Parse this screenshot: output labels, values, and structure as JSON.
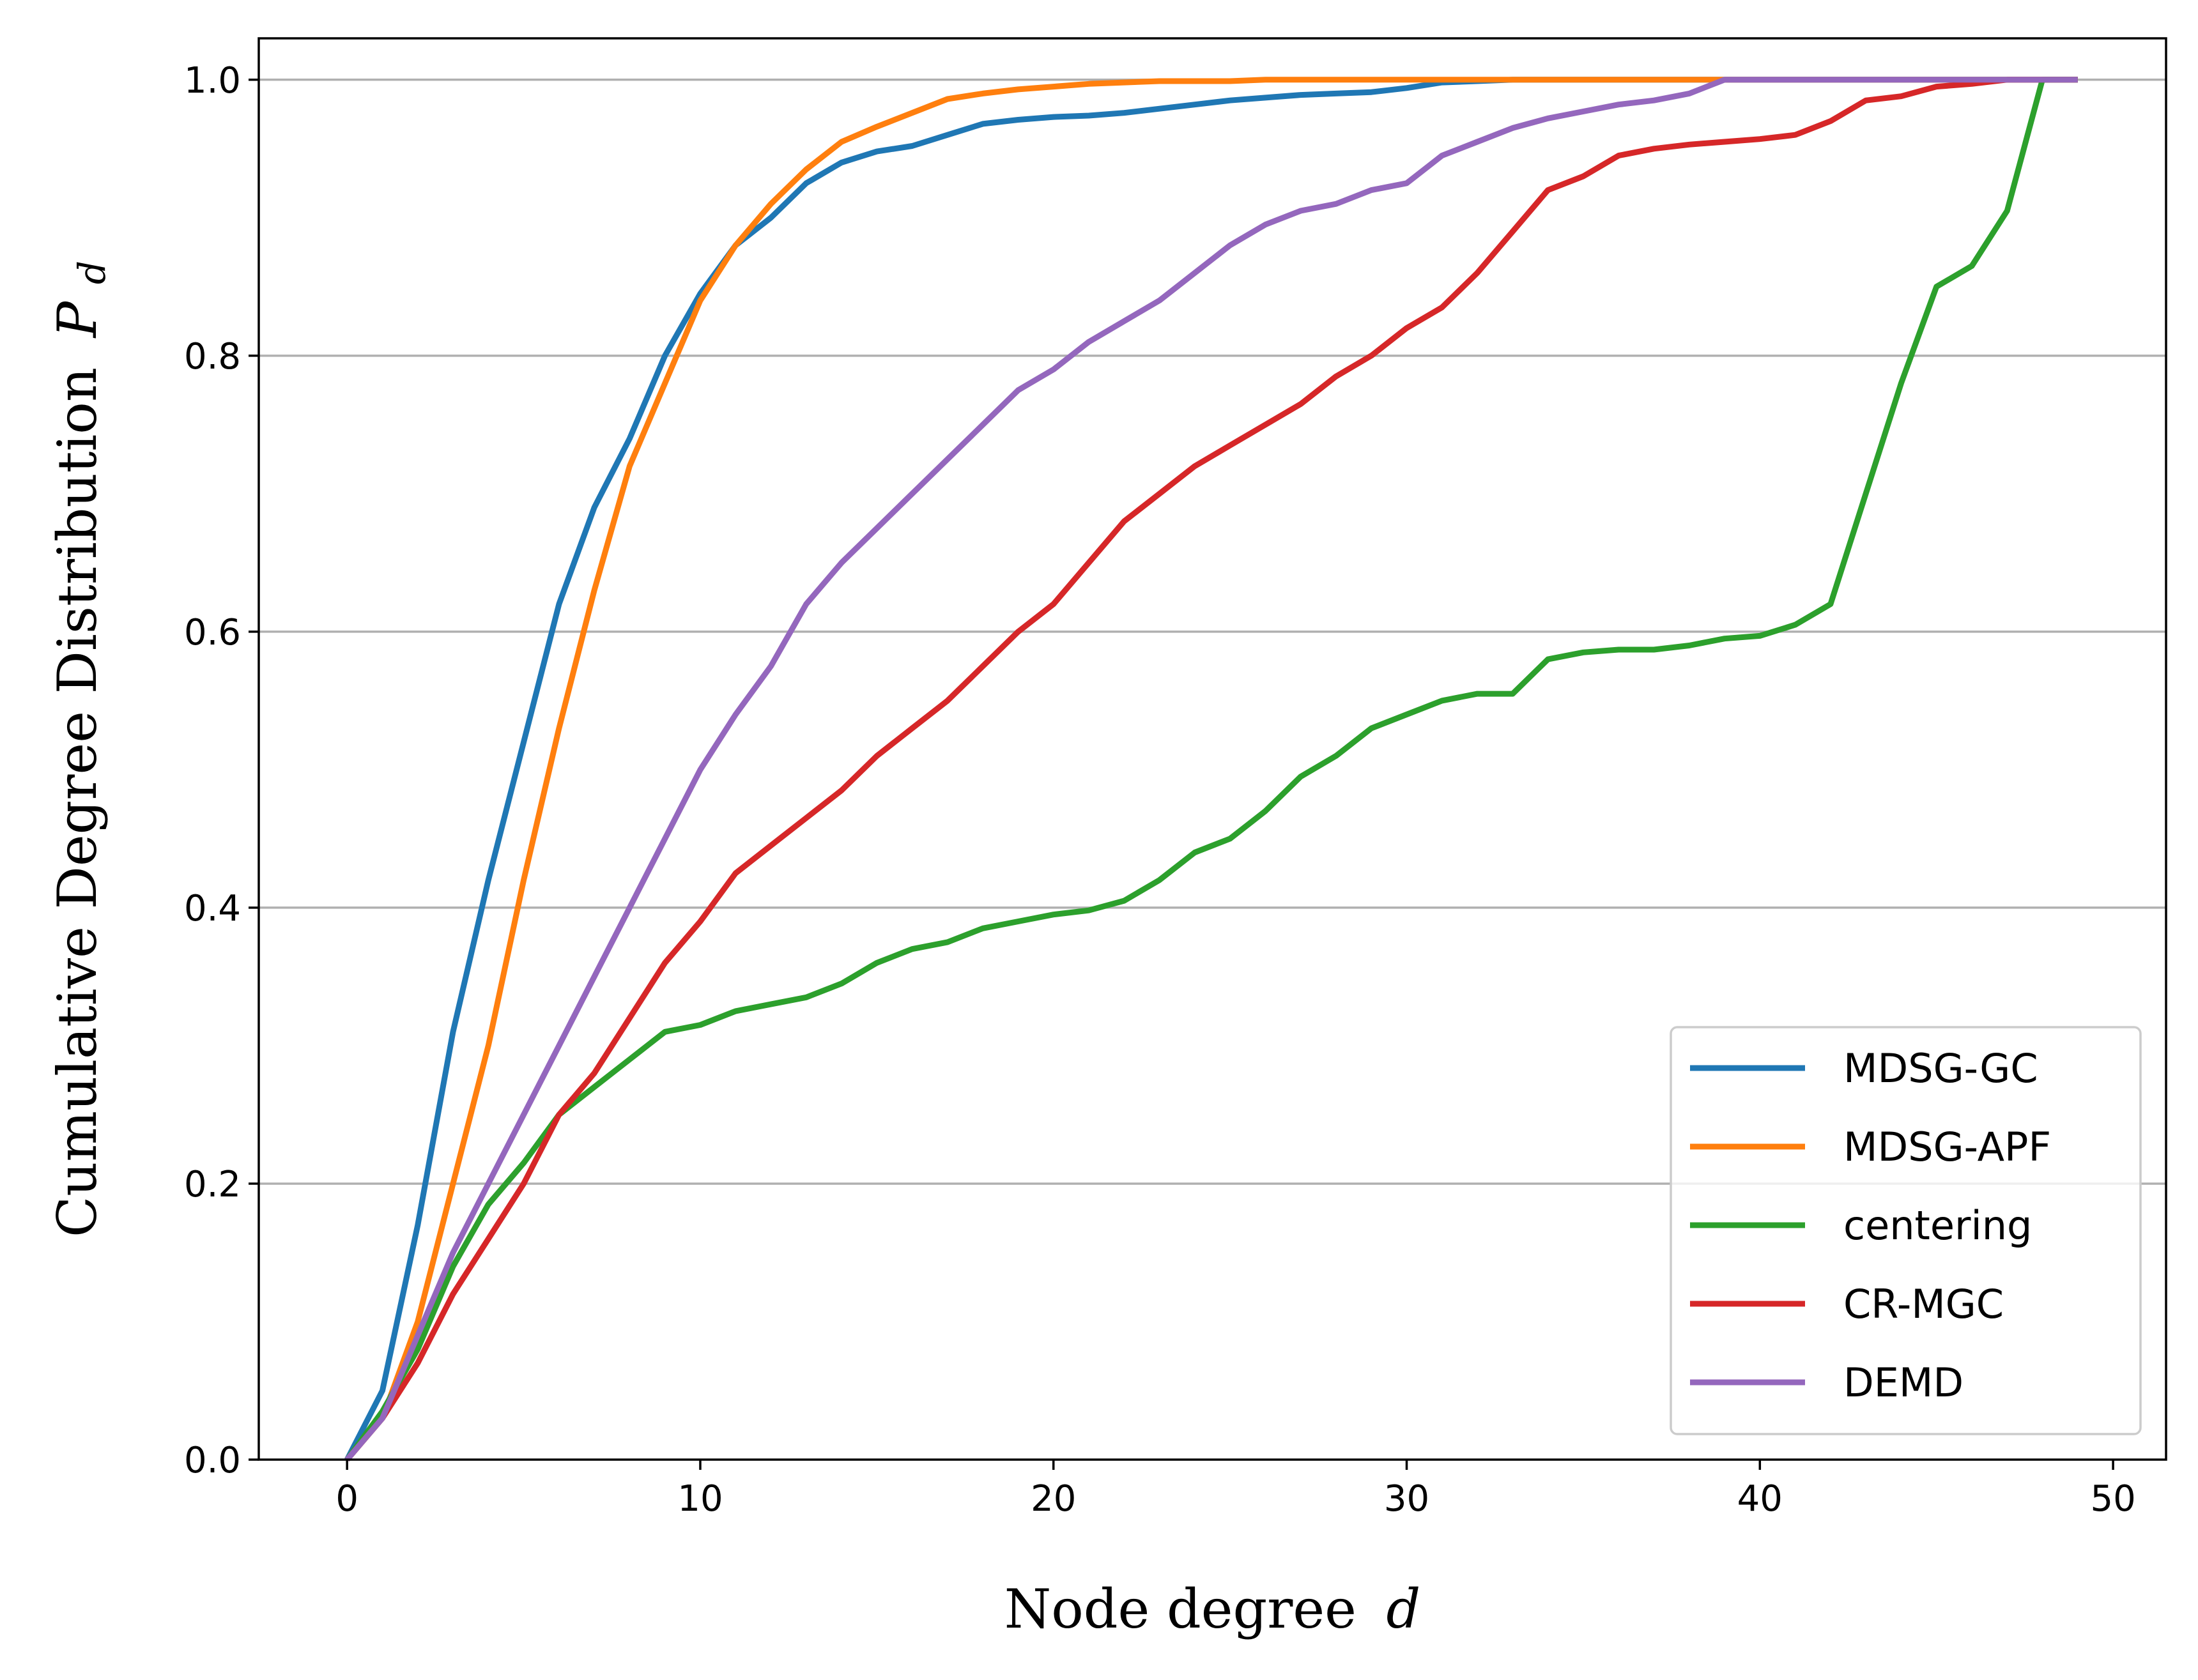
{
  "chart_data": {
    "type": "line",
    "xlabel": "Node degree",
    "xlabel_var": "d",
    "ylabel": "Cumulative Degree Distribution",
    "ylabel_var": "P",
    "ylabel_sub": "d",
    "xlim": [
      -2.5,
      51.5
    ],
    "ylim": [
      0,
      1.03
    ],
    "xticks": [
      0,
      10,
      20,
      30,
      40,
      50
    ],
    "yticks": [
      0.0,
      0.2,
      0.4,
      0.6,
      0.8,
      1.0
    ],
    "xtick_labels": [
      "0",
      "10",
      "20",
      "30",
      "40",
      "50"
    ],
    "ytick_labels": [
      "0.0",
      "0.2",
      "0.4",
      "0.6",
      "0.8",
      "1.0"
    ],
    "grid": "y-major",
    "legend_position": "lower-right",
    "x": [
      0,
      1,
      2,
      3,
      4,
      5,
      6,
      7,
      8,
      9,
      10,
      11,
      12,
      13,
      14,
      15,
      16,
      17,
      18,
      19,
      20,
      21,
      22,
      23,
      24,
      25,
      26,
      27,
      28,
      29,
      30,
      31,
      32,
      33,
      34,
      35,
      36,
      37,
      38,
      39,
      40,
      41,
      42,
      43,
      44,
      45,
      46,
      47,
      48,
      49
    ],
    "series": [
      {
        "name": "MDSG-GC",
        "color": "#1f77b4",
        "values": [
          0.0,
          0.05,
          0.17,
          0.31,
          0.42,
          0.52,
          0.62,
          0.69,
          0.74,
          0.8,
          0.845,
          0.88,
          0.9,
          0.925,
          0.94,
          0.948,
          0.952,
          0.96,
          0.968,
          0.971,
          0.973,
          0.974,
          0.976,
          0.979,
          0.982,
          0.985,
          0.987,
          0.989,
          0.99,
          0.991,
          0.994,
          0.998,
          0.999,
          1.0,
          1.0,
          1.0,
          1.0,
          1.0,
          1.0,
          1.0,
          1.0,
          1.0,
          1.0,
          1.0,
          1.0,
          1.0,
          1.0,
          1.0,
          1.0,
          1.0
        ]
      },
      {
        "name": "MDSG-APF",
        "color": "#ff7f0e",
        "values": [
          0.0,
          0.03,
          0.1,
          0.2,
          0.3,
          0.42,
          0.53,
          0.63,
          0.72,
          0.78,
          0.84,
          0.88,
          0.91,
          0.935,
          0.955,
          0.966,
          0.976,
          0.986,
          0.99,
          0.993,
          0.995,
          0.997,
          0.998,
          0.999,
          0.999,
          0.999,
          1.0,
          1.0,
          1.0,
          1.0,
          1.0,
          1.0,
          1.0,
          1.0,
          1.0,
          1.0,
          1.0,
          1.0,
          1.0,
          1.0,
          1.0,
          1.0,
          1.0,
          1.0,
          1.0,
          1.0,
          1.0,
          1.0,
          1.0,
          1.0
        ]
      },
      {
        "name": "centering",
        "color": "#2ca02c",
        "values": [
          0.0,
          0.035,
          0.08,
          0.14,
          0.185,
          0.215,
          0.25,
          0.27,
          0.29,
          0.31,
          0.315,
          0.325,
          0.33,
          0.335,
          0.345,
          0.36,
          0.37,
          0.375,
          0.385,
          0.39,
          0.395,
          0.398,
          0.405,
          0.42,
          0.44,
          0.45,
          0.47,
          0.495,
          0.51,
          0.53,
          0.54,
          0.55,
          0.555,
          0.555,
          0.58,
          0.585,
          0.587,
          0.587,
          0.59,
          0.595,
          0.597,
          0.605,
          0.62,
          0.7,
          0.78,
          0.85,
          0.865,
          0.905,
          1.0,
          1.0
        ]
      },
      {
        "name": "CR-MGC",
        "color": "#d62728",
        "values": [
          0.0,
          0.03,
          0.07,
          0.12,
          0.16,
          0.2,
          0.25,
          0.28,
          0.32,
          0.36,
          0.39,
          0.425,
          0.445,
          0.465,
          0.485,
          0.51,
          0.53,
          0.55,
          0.575,
          0.6,
          0.62,
          0.65,
          0.68,
          0.7,
          0.72,
          0.735,
          0.75,
          0.765,
          0.785,
          0.8,
          0.82,
          0.835,
          0.86,
          0.89,
          0.92,
          0.93,
          0.945,
          0.95,
          0.953,
          0.955,
          0.957,
          0.96,
          0.97,
          0.985,
          0.988,
          0.995,
          0.997,
          1.0,
          1.0,
          1.0
        ]
      },
      {
        "name": "DEMD",
        "color": "#9467bd",
        "values": [
          0.0,
          0.03,
          0.09,
          0.15,
          0.2,
          0.25,
          0.3,
          0.35,
          0.4,
          0.45,
          0.5,
          0.54,
          0.575,
          0.62,
          0.65,
          0.675,
          0.7,
          0.725,
          0.75,
          0.775,
          0.79,
          0.81,
          0.825,
          0.84,
          0.86,
          0.88,
          0.895,
          0.905,
          0.91,
          0.92,
          0.925,
          0.945,
          0.955,
          0.965,
          0.972,
          0.977,
          0.982,
          0.985,
          0.99,
          1.0,
          1.0,
          1.0,
          1.0,
          1.0,
          1.0,
          1.0,
          1.0,
          1.0,
          1.0,
          1.0
        ]
      }
    ]
  }
}
